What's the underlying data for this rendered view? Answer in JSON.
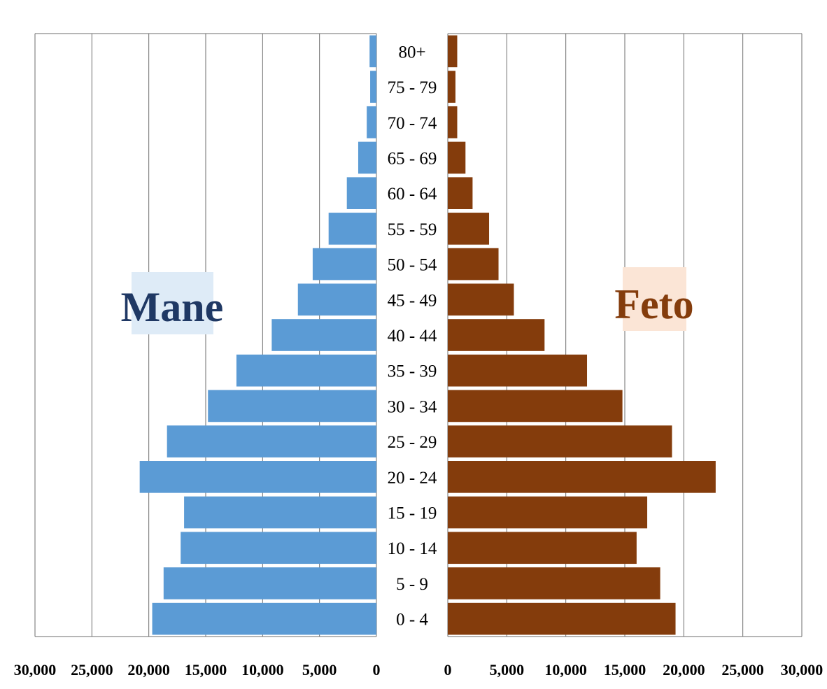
{
  "chart_data": {
    "type": "bar",
    "orientation": "horizontal-population-pyramid",
    "categories": [
      "0 - 4",
      "5 - 9",
      "10 - 14",
      "15 - 19",
      "20 - 24",
      "25 - 29",
      "30 - 34",
      "35 - 39",
      "40 - 44",
      "45 - 49",
      "50 - 54",
      "55 - 59",
      "60 - 64",
      "65 - 69",
      "70 - 74",
      "75 - 79",
      "80+"
    ],
    "series": [
      {
        "name": "Mane",
        "color": "#5b9bd5",
        "values": [
          19700,
          18700,
          17200,
          16900,
          20800,
          18400,
          14800,
          12300,
          9200,
          6900,
          5600,
          4200,
          2600,
          1600,
          850,
          550,
          600
        ]
      },
      {
        "name": "Feto",
        "color": "#843c0c",
        "values": [
          19300,
          18000,
          16000,
          16900,
          22700,
          19000,
          14800,
          11800,
          8200,
          5600,
          4300,
          3500,
          2100,
          1500,
          800,
          650,
          800
        ]
      }
    ],
    "xlim": [
      0,
      30000
    ],
    "ticks": [
      "0",
      "5,000",
      "10,000",
      "15,000",
      "20,000",
      "25,000",
      "30,000"
    ],
    "grid": true,
    "label_left": "Mane",
    "label_right": "Feto",
    "label_left_bg": "#deebf7",
    "label_right_bg": "#fbe5d6",
    "label_left_color": "#1f3864",
    "label_right_color": "#843c0c"
  }
}
